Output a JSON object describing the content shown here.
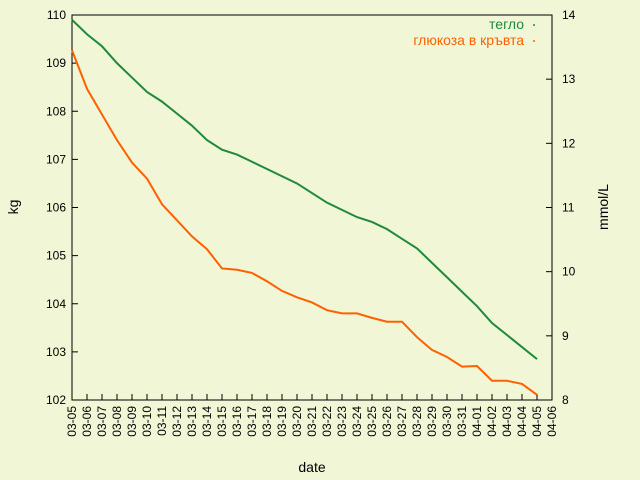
{
  "chart_data": {
    "type": "line",
    "xlabel": "date",
    "ylabel": "kg",
    "y2label": "mmol/L",
    "categories": [
      "03-05",
      "03-06",
      "03-07",
      "03-08",
      "03-09",
      "03-10",
      "03-11",
      "03-12",
      "03-13",
      "03-14",
      "03-15",
      "03-16",
      "03-17",
      "03-18",
      "03-19",
      "03-20",
      "03-21",
      "03-22",
      "03-23",
      "03-24",
      "03-25",
      "03-26",
      "03-27",
      "03-28",
      "03-29",
      "03-30",
      "03-31",
      "04-01",
      "04-02",
      "04-03",
      "04-04",
      "04-05",
      "04-06"
    ],
    "series": [
      {
        "name": "тегло",
        "color": "#1f8a3a",
        "axis": "y",
        "values": [
          109.9,
          109.6,
          109.35,
          109.0,
          108.7,
          108.4,
          108.2,
          107.95,
          107.7,
          107.4,
          107.2,
          107.1,
          106.95,
          106.8,
          106.65,
          106.5,
          106.3,
          106.1,
          105.95,
          105.8,
          105.7,
          105.55,
          105.35,
          105.15,
          104.85,
          104.55,
          104.25,
          103.95,
          103.6,
          103.35,
          103.1,
          102.85,
          null
        ]
      },
      {
        "name": "глюкоза в кръвта",
        "color": "#ff6000",
        "axis": "y2",
        "values": [
          13.45,
          12.85,
          12.45,
          12.05,
          11.7,
          11.45,
          11.05,
          10.8,
          10.55,
          10.35,
          10.05,
          10.03,
          9.98,
          9.85,
          9.7,
          9.6,
          9.52,
          9.4,
          9.35,
          9.35,
          9.28,
          9.22,
          9.22,
          8.98,
          8.78,
          8.67,
          8.52,
          8.53,
          8.3,
          8.3,
          8.25,
          8.08,
          null
        ]
      }
    ],
    "ylim": [
      102,
      110
    ],
    "yticks": [
      102,
      103,
      104,
      105,
      106,
      107,
      108,
      109,
      110
    ],
    "y2lim": [
      8,
      14
    ],
    "y2ticks": [
      8,
      9,
      10,
      11,
      12,
      13,
      14
    ],
    "legend": "top-right",
    "grid": false
  }
}
